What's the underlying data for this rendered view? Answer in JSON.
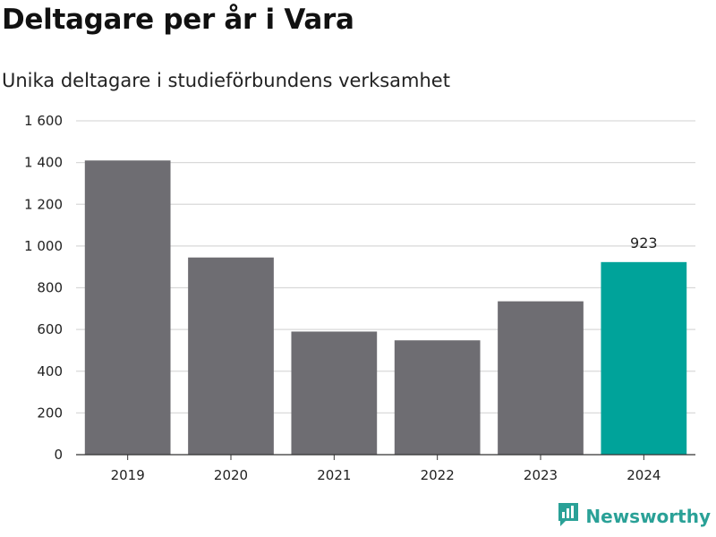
{
  "header": {
    "title": "Deltagare per år i Vara",
    "subtitle": "Unika deltagare i studieförbundens verksamhet"
  },
  "chart_data": {
    "type": "bar",
    "categories": [
      "2019",
      "2020",
      "2021",
      "2022",
      "2023",
      "2024"
    ],
    "values": [
      1410,
      945,
      590,
      548,
      735,
      923
    ],
    "highlight_index": 5,
    "data_labels": [
      {
        "index": 5,
        "text": "923"
      }
    ],
    "ylim": [
      0,
      1600
    ],
    "yticks": [
      0,
      200,
      400,
      600,
      800,
      1000,
      1200,
      1400,
      1600
    ],
    "ytick_labels": [
      "0",
      "200",
      "400",
      "600",
      "800",
      "1 000",
      "1 200",
      "1 400",
      "1 600"
    ],
    "grid": true,
    "colors": {
      "bar": "#6e6d72",
      "highlight": "#00a39a",
      "grid": "#d9d9d9",
      "axis": "#333333"
    }
  },
  "branding": {
    "name": "Newsworthy",
    "icon": "bar-chart-logo-icon",
    "color": "#2aa197"
  }
}
